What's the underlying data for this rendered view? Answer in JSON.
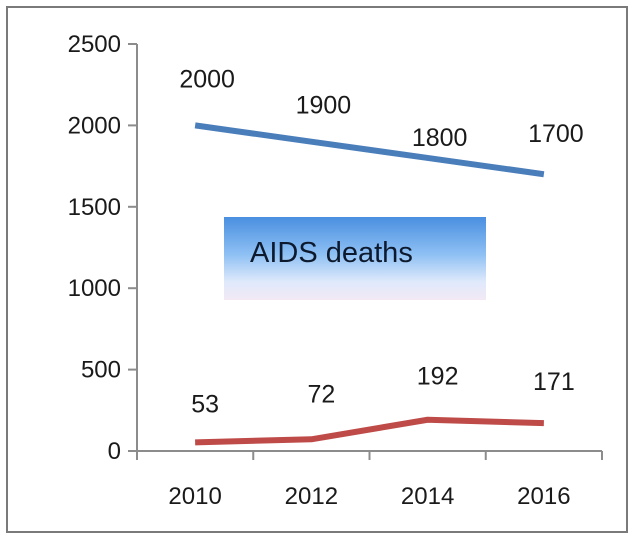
{
  "chart_data": {
    "type": "line",
    "title": "",
    "xlabel": "",
    "ylabel": "",
    "categories": [
      "2010",
      "2012",
      "2014",
      "2016"
    ],
    "ylim": [
      0,
      2500
    ],
    "yticks": [
      0,
      500,
      1000,
      1500,
      2000,
      2500
    ],
    "grid": false,
    "series": [
      {
        "values": [
          2000,
          1900,
          1800,
          1700
        ],
        "color": "#4a7ebb"
      },
      {
        "values": [
          53,
          72,
          192,
          171
        ],
        "color": "#be4b48"
      }
    ],
    "annotation": "AIDS deaths"
  }
}
